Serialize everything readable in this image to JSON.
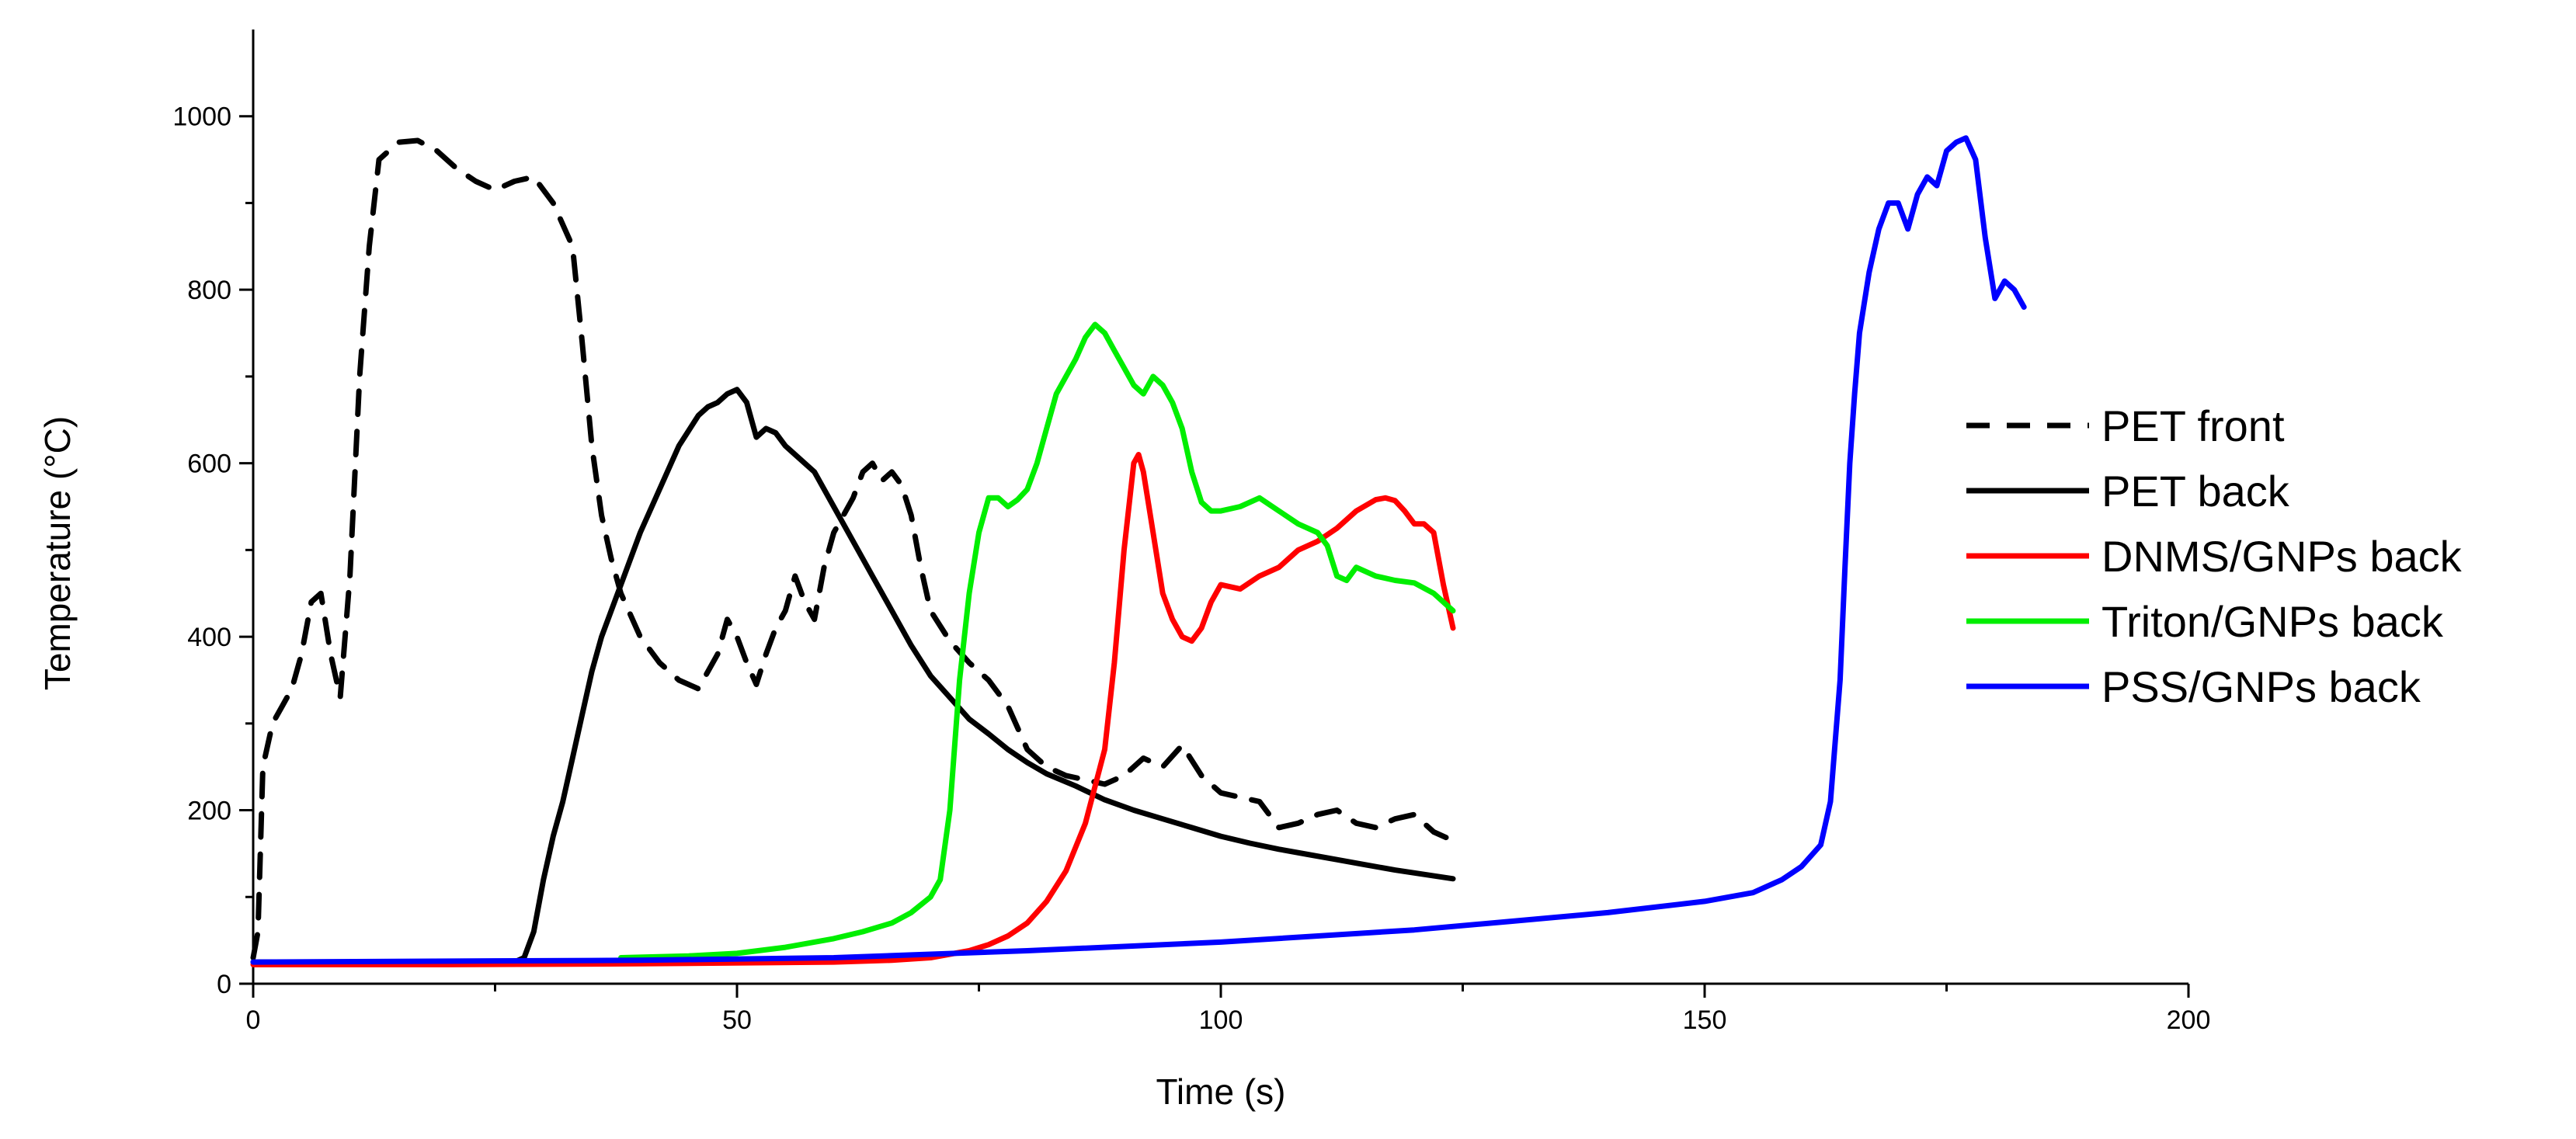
{
  "chart_data": {
    "type": "line",
    "title": "",
    "xlabel": "Time (s)",
    "ylabel": "Temperature (°C)",
    "xlim": [
      0,
      200
    ],
    "ylim": [
      0,
      1100
    ],
    "xticks": [
      0,
      50,
      100,
      150,
      200
    ],
    "xtick_labels": [
      "0",
      "50",
      "100",
      "150",
      "200"
    ],
    "yticks": [
      0,
      200,
      400,
      600,
      800,
      1000
    ],
    "ytick_labels": [
      "0",
      "200",
      "400",
      "600",
      "800",
      "1000"
    ],
    "grid": false,
    "legend_position": "right",
    "series": [
      {
        "name": "PET front",
        "color": "#000000",
        "dash": "dashed",
        "x": [
          0,
          0.5,
          1,
          2,
          3,
          4,
          5,
          6,
          7,
          8,
          9,
          10,
          11,
          12,
          13,
          15,
          17,
          19,
          21,
          23,
          25,
          27,
          29,
          31,
          33,
          34,
          35,
          36,
          37,
          38,
          40,
          42,
          44,
          46,
          48,
          49,
          50,
          51,
          52,
          53,
          54,
          55,
          56,
          57,
          58,
          59,
          60,
          61,
          62,
          63,
          64,
          65,
          66,
          67,
          68,
          69,
          70,
          72,
          74,
          76,
          78,
          80,
          82,
          84,
          86,
          88,
          90,
          92,
          94,
          96,
          98,
          100,
          102,
          104,
          106,
          108,
          110,
          112,
          114,
          116,
          118,
          120,
          122,
          124
        ],
        "values": [
          30,
          60,
          250,
          300,
          320,
          340,
          380,
          440,
          450,
          380,
          330,
          470,
          700,
          850,
          950,
          970,
          972,
          960,
          940,
          925,
          915,
          925,
          930,
          900,
          850,
          740,
          620,
          540,
          490,
          450,
          400,
          370,
          350,
          340,
          380,
          420,
          400,
          370,
          345,
          380,
          410,
          430,
          470,
          440,
          420,
          480,
          520,
          540,
          560,
          590,
          600,
          580,
          590,
          575,
          540,
          480,
          430,
          395,
          370,
          350,
          320,
          270,
          250,
          240,
          235,
          230,
          240,
          260,
          250,
          275,
          240,
          220,
          215,
          210,
          180,
          185,
          195,
          200,
          185,
          180,
          190,
          195,
          175,
          165
        ]
      },
      {
        "name": "PET back",
        "color": "#000000",
        "dash": "solid",
        "x": [
          0,
          27,
          28,
          29,
          30,
          31,
          32,
          33,
          34,
          35,
          36,
          38,
          40,
          42,
          44,
          46,
          47,
          48,
          49,
          50,
          51,
          52,
          53,
          54,
          55,
          56,
          58,
          60,
          62,
          64,
          66,
          68,
          70,
          72,
          74,
          76,
          78,
          80,
          82,
          85,
          88,
          91,
          94,
          97,
          100,
          103,
          106,
          109,
          112,
          115,
          118,
          121,
          124
        ],
        "values": [
          25,
          25,
          30,
          60,
          120,
          170,
          210,
          260,
          310,
          360,
          400,
          460,
          520,
          570,
          620,
          655,
          665,
          670,
          680,
          685,
          670,
          630,
          640,
          635,
          620,
          610,
          590,
          550,
          510,
          470,
          430,
          390,
          355,
          330,
          305,
          288,
          270,
          255,
          242,
          228,
          212,
          200,
          190,
          180,
          170,
          162,
          155,
          149,
          143,
          137,
          131,
          126,
          121
        ]
      },
      {
        "name": "DNMS/GNPs back",
        "color": "#ff0000",
        "dash": "solid",
        "x": [
          0,
          20,
          40,
          60,
          66,
          70,
          74,
          76,
          78,
          80,
          82,
          84,
          86,
          88,
          89,
          90,
          91,
          91.5,
          92,
          93,
          94,
          95,
          96,
          97,
          98,
          99,
          100,
          102,
          104,
          106,
          108,
          110,
          112,
          114,
          116,
          117,
          118,
          119,
          120,
          121,
          122,
          123,
          124
        ],
        "values": [
          22,
          22,
          23,
          25,
          27,
          30,
          38,
          45,
          55,
          70,
          95,
          130,
          185,
          270,
          370,
          500,
          600,
          610,
          590,
          520,
          450,
          420,
          400,
          395,
          410,
          440,
          460,
          455,
          470,
          480,
          500,
          510,
          525,
          545,
          558,
          560,
          557,
          545,
          530,
          530,
          520,
          460,
          410
        ]
      },
      {
        "name": "Triton/GNPs back",
        "color": "#00ee00",
        "dash": "solid",
        "x": [
          38,
          45,
          50,
          55,
          60,
          63,
          66,
          68,
          70,
          71,
          72,
          73,
          74,
          75,
          76,
          77,
          78,
          79,
          80,
          81,
          82,
          83,
          84,
          85,
          86,
          87,
          88,
          89,
          90,
          91,
          92,
          93,
          94,
          95,
          96,
          97,
          98,
          99,
          100,
          102,
          104,
          106,
          108,
          110,
          111,
          112,
          113,
          114,
          116,
          118,
          120,
          122,
          124
        ],
        "values": [
          30,
          32,
          35,
          42,
          52,
          60,
          70,
          82,
          100,
          120,
          200,
          350,
          450,
          520,
          560,
          560,
          550,
          558,
          570,
          600,
          640,
          680,
          700,
          720,
          745,
          760,
          750,
          730,
          710,
          690,
          680,
          700,
          690,
          670,
          640,
          590,
          555,
          545,
          545,
          550,
          560,
          545,
          530,
          520,
          505,
          470,
          465,
          480,
          470,
          465,
          462,
          450,
          430
        ]
      },
      {
        "name": "PSS/GNPs back",
        "color": "#0000ff",
        "dash": "solid",
        "x": [
          0,
          40,
          60,
          80,
          100,
          120,
          130,
          140,
          150,
          155,
          158,
          160,
          162,
          163,
          164,
          164.5,
          165,
          165.5,
          166,
          167,
          168,
          169,
          170,
          171,
          172,
          173,
          174,
          175,
          176,
          177,
          178,
          179,
          180,
          181,
          182,
          183
        ],
        "values": [
          25,
          27,
          30,
          38,
          48,
          62,
          72,
          82,
          95,
          105,
          120,
          135,
          160,
          210,
          350,
          480,
          600,
          680,
          750,
          820,
          870,
          900,
          900,
          870,
          910,
          930,
          920,
          960,
          970,
          975,
          950,
          860,
          790,
          810,
          800,
          780
        ]
      }
    ]
  }
}
